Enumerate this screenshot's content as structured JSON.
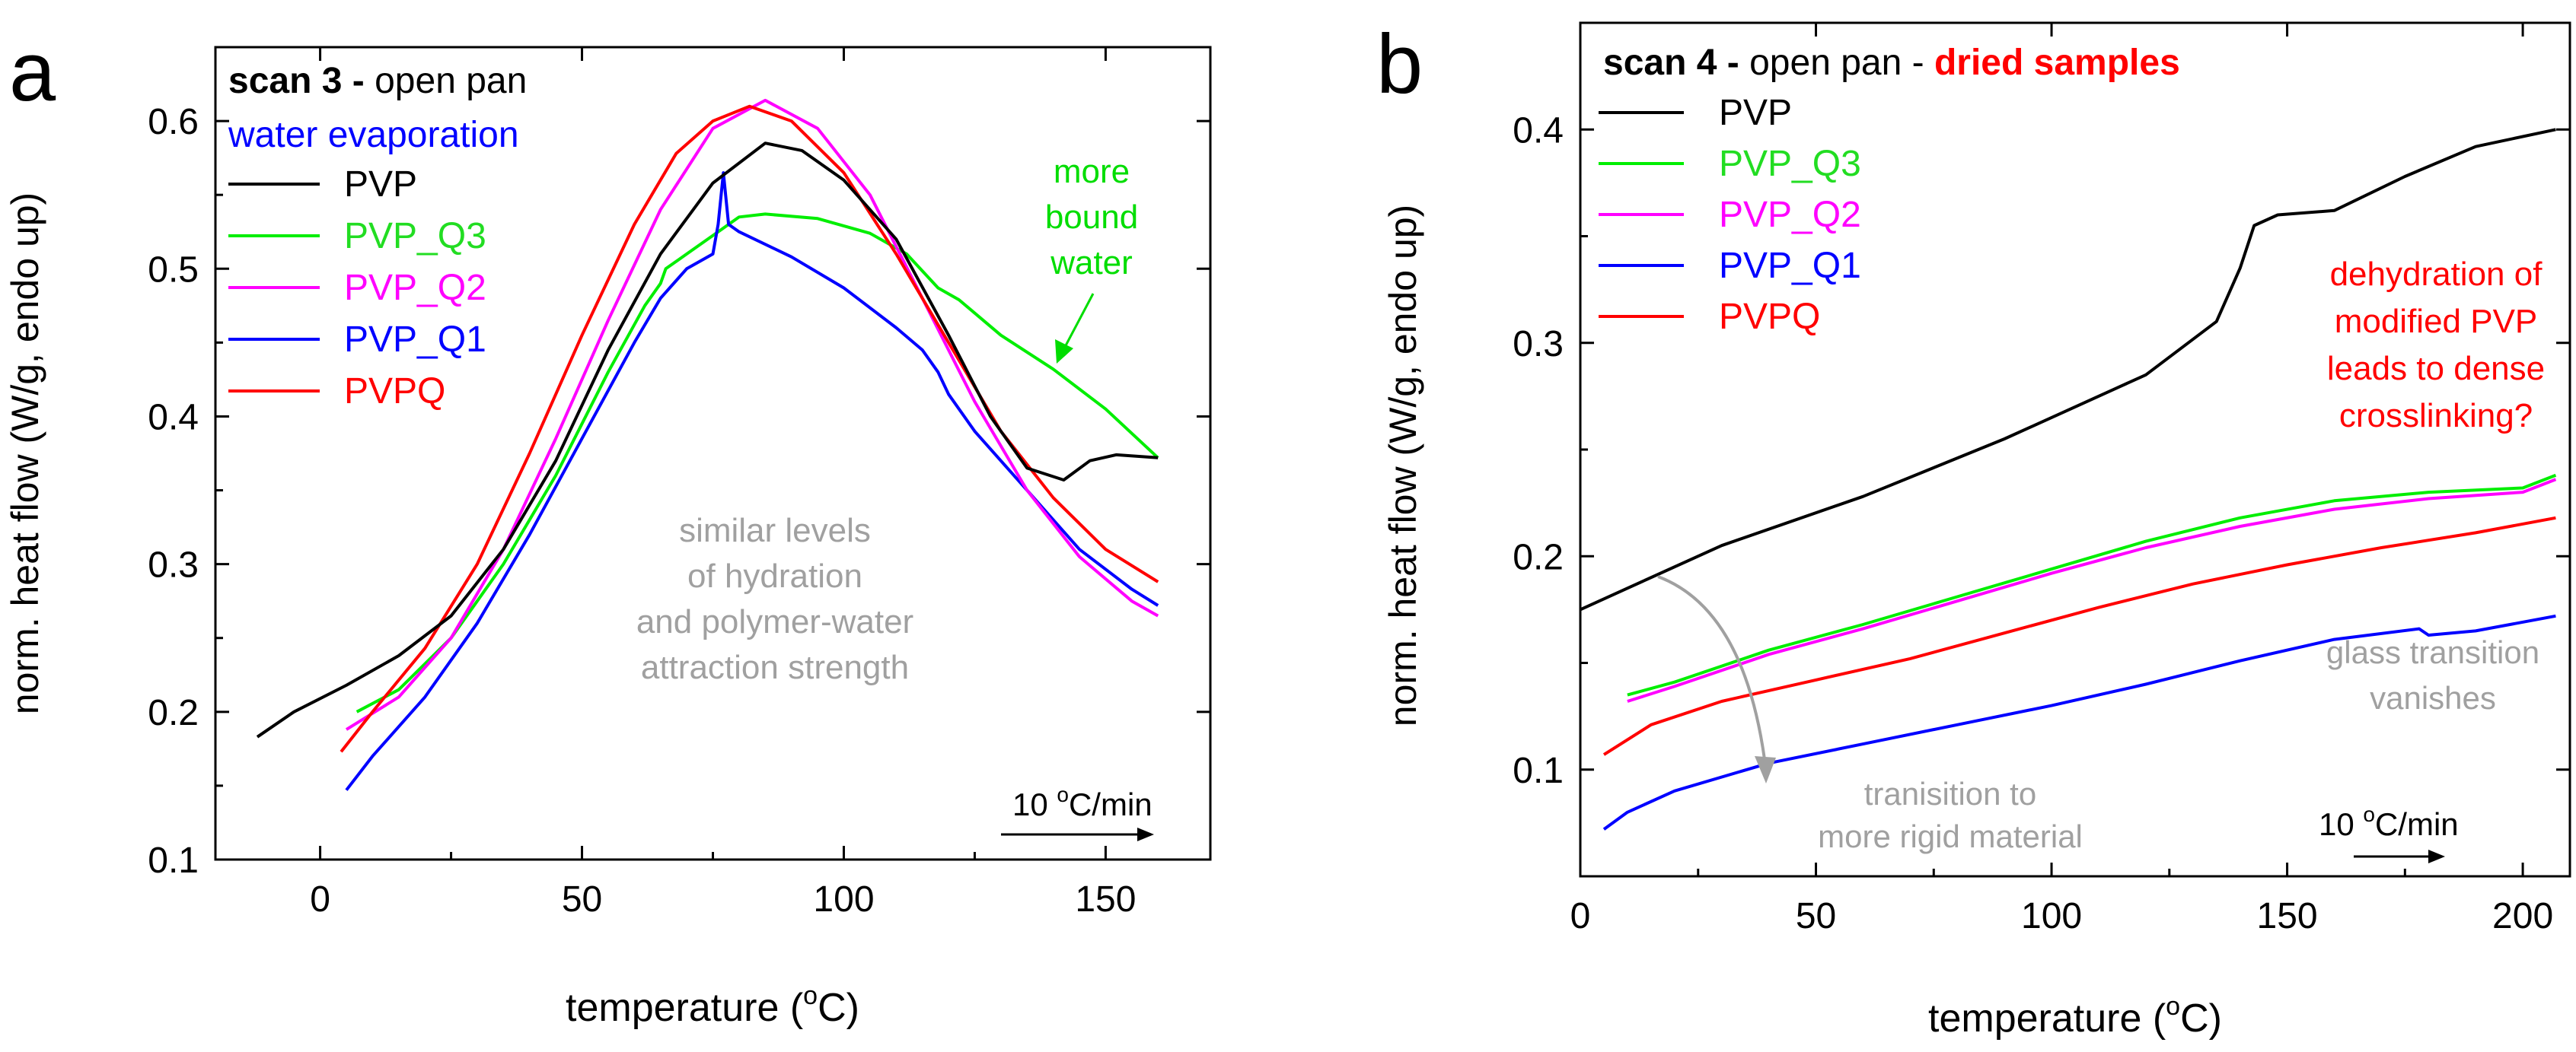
{
  "panels": [
    {
      "label": "a",
      "heading": {
        "bold": "scan 3 -",
        "rest": " open pan"
      },
      "subheading": {
        "text": "water evaporation",
        "color": "#0000ff"
      },
      "ylabel": "norm. heat flow (W/g, endo up)",
      "xlabel_pre": "temperature (",
      "xlabel_sup": "o",
      "xlabel_post": "C)",
      "rate": {
        "pre": "10 ",
        "sup": "o",
        "post": "C/min"
      }
    },
    {
      "label": "b",
      "heading": {
        "bold": "scan 4 -",
        "rest": " open pan - ",
        "highlight": "dried samples",
        "highlight_color": "#ff0000"
      },
      "ylabel": "norm. heat flow (W/g, endo up)",
      "xlabel_pre": "temperature (",
      "xlabel_sup": "o",
      "xlabel_post": "C)",
      "rate": {
        "pre": "10 ",
        "sup": "o",
        "post": "C/min"
      }
    }
  ],
  "chart_data": [
    {
      "type": "line",
      "xlim": [
        -20,
        170
      ],
      "ylim": [
        0.1,
        0.65
      ],
      "xticks": [
        "0",
        "50",
        "100",
        "150"
      ],
      "xtick_values": [
        0,
        50,
        100,
        150
      ],
      "yticks": [
        "0.1",
        "0.2",
        "0.3",
        "0.4",
        "0.5",
        "0.6"
      ],
      "ytick_values": [
        0.1,
        0.2,
        0.3,
        0.4,
        0.5,
        0.6
      ],
      "series": [
        {
          "name": "PVP",
          "color": "#000000",
          "points": [
            [
              -12,
              0.183
            ],
            [
              -5,
              0.2
            ],
            [
              5,
              0.218
            ],
            [
              15,
              0.238
            ],
            [
              25,
              0.265
            ],
            [
              35,
              0.31
            ],
            [
              45,
              0.37
            ],
            [
              55,
              0.445
            ],
            [
              65,
              0.51
            ],
            [
              75,
              0.558
            ],
            [
              85,
              0.585
            ],
            [
              92,
              0.58
            ],
            [
              100,
              0.56
            ],
            [
              110,
              0.52
            ],
            [
              120,
              0.455
            ],
            [
              128,
              0.4
            ],
            [
              135,
              0.365
            ],
            [
              142,
              0.357
            ],
            [
              147,
              0.37
            ],
            [
              152,
              0.374
            ],
            [
              160,
              0.372
            ]
          ]
        },
        {
          "name": "PVP_Q3",
          "color": "#00ee00",
          "points": [
            [
              7,
              0.2
            ],
            [
              15,
              0.215
            ],
            [
              25,
              0.25
            ],
            [
              35,
              0.3
            ],
            [
              45,
              0.36
            ],
            [
              55,
              0.43
            ],
            [
              62,
              0.475
            ],
            [
              65,
              0.49
            ],
            [
              66,
              0.5
            ],
            [
              70,
              0.51
            ],
            [
              76,
              0.525
            ],
            [
              80,
              0.535
            ],
            [
              85,
              0.537
            ],
            [
              95,
              0.534
            ],
            [
              105,
              0.524
            ],
            [
              112,
              0.51
            ],
            [
              118,
              0.487
            ],
            [
              122,
              0.479
            ],
            [
              130,
              0.455
            ],
            [
              140,
              0.432
            ],
            [
              150,
              0.405
            ],
            [
              160,
              0.372
            ]
          ]
        },
        {
          "name": "PVP_Q2",
          "color": "#ff00ff",
          "points": [
            [
              5,
              0.188
            ],
            [
              15,
              0.21
            ],
            [
              25,
              0.25
            ],
            [
              35,
              0.31
            ],
            [
              45,
              0.385
            ],
            [
              55,
              0.465
            ],
            [
              65,
              0.54
            ],
            [
              75,
              0.595
            ],
            [
              85,
              0.614
            ],
            [
              95,
              0.595
            ],
            [
              105,
              0.55
            ],
            [
              115,
              0.48
            ],
            [
              125,
              0.41
            ],
            [
              135,
              0.35
            ],
            [
              145,
              0.305
            ],
            [
              155,
              0.275
            ],
            [
              160,
              0.265
            ]
          ]
        },
        {
          "name": "PVP_Q1",
          "color": "#0000ff",
          "points": [
            [
              5,
              0.147
            ],
            [
              10,
              0.17
            ],
            [
              20,
              0.21
            ],
            [
              30,
              0.26
            ],
            [
              40,
              0.32
            ],
            [
              50,
              0.385
            ],
            [
              60,
              0.45
            ],
            [
              65,
              0.48
            ],
            [
              70,
              0.5
            ],
            [
              75,
              0.51
            ],
            [
              76,
              0.53
            ],
            [
              77,
              0.565
            ],
            [
              78,
              0.53
            ],
            [
              80,
              0.525
            ],
            [
              90,
              0.508
            ],
            [
              100,
              0.487
            ],
            [
              110,
              0.46
            ],
            [
              115,
              0.445
            ],
            [
              118,
              0.43
            ],
            [
              120,
              0.415
            ],
            [
              125,
              0.39
            ],
            [
              135,
              0.35
            ],
            [
              145,
              0.31
            ],
            [
              155,
              0.283
            ],
            [
              160,
              0.272
            ]
          ]
        },
        {
          "name": "PVPQ",
          "color": "#ff0000",
          "points": [
            [
              4,
              0.173
            ],
            [
              10,
              0.2
            ],
            [
              20,
              0.243
            ],
            [
              30,
              0.3
            ],
            [
              40,
              0.375
            ],
            [
              50,
              0.455
            ],
            [
              60,
              0.53
            ],
            [
              68,
              0.578
            ],
            [
              75,
              0.6
            ],
            [
              82,
              0.61
            ],
            [
              90,
              0.6
            ],
            [
              100,
              0.565
            ],
            [
              110,
              0.51
            ],
            [
              120,
              0.45
            ],
            [
              130,
              0.39
            ],
            [
              140,
              0.345
            ],
            [
              150,
              0.31
            ],
            [
              160,
              0.288
            ]
          ]
        }
      ]
    },
    {
      "type": "line",
      "xlim": [
        0,
        210
      ],
      "ylim": [
        0.05,
        0.45
      ],
      "xticks": [
        "0",
        "50",
        "100",
        "150",
        "200"
      ],
      "xtick_values": [
        0,
        50,
        100,
        150,
        200
      ],
      "yticks": [
        "0.1",
        "0.2",
        "0.3",
        "0.4"
      ],
      "ytick_values": [
        0.1,
        0.2,
        0.3,
        0.4
      ],
      "series": [
        {
          "name": "PVP",
          "color": "#000000",
          "points": [
            [
              0,
              0.175
            ],
            [
              10,
              0.185
            ],
            [
              30,
              0.205
            ],
            [
              60,
              0.228
            ],
            [
              90,
              0.255
            ],
            [
              120,
              0.285
            ],
            [
              135,
              0.31
            ],
            [
              140,
              0.335
            ],
            [
              143,
              0.355
            ],
            [
              148,
              0.36
            ],
            [
              160,
              0.362
            ],
            [
              175,
              0.378
            ],
            [
              190,
              0.392
            ],
            [
              207,
              0.4
            ]
          ]
        },
        {
          "name": "PVP_Q3",
          "color": "#00ee00",
          "points": [
            [
              10,
              0.135
            ],
            [
              20,
              0.141
            ],
            [
              40,
              0.156
            ],
            [
              60,
              0.168
            ],
            [
              80,
              0.181
            ],
            [
              100,
              0.194
            ],
            [
              120,
              0.207
            ],
            [
              140,
              0.218
            ],
            [
              160,
              0.226
            ],
            [
              180,
              0.23
            ],
            [
              200,
              0.232
            ],
            [
              207,
              0.238
            ]
          ]
        },
        {
          "name": "PVP_Q2",
          "color": "#ff00ff",
          "points": [
            [
              10,
              0.132
            ],
            [
              20,
              0.139
            ],
            [
              40,
              0.154
            ],
            [
              60,
              0.166
            ],
            [
              80,
              0.179
            ],
            [
              100,
              0.192
            ],
            [
              120,
              0.204
            ],
            [
              140,
              0.214
            ],
            [
              160,
              0.222
            ],
            [
              180,
              0.227
            ],
            [
              200,
              0.23
            ],
            [
              207,
              0.236
            ]
          ]
        },
        {
          "name": "PVP_Q1",
          "color": "#0000ff",
          "points": [
            [
              5,
              0.072
            ],
            [
              10,
              0.08
            ],
            [
              20,
              0.09
            ],
            [
              40,
              0.103
            ],
            [
              60,
              0.112
            ],
            [
              80,
              0.121
            ],
            [
              100,
              0.13
            ],
            [
              120,
              0.14
            ],
            [
              140,
              0.151
            ],
            [
              160,
              0.161
            ],
            [
              178,
              0.166
            ],
            [
              180,
              0.163
            ],
            [
              190,
              0.165
            ],
            [
              207,
              0.172
            ]
          ]
        },
        {
          "name": "PVPQ",
          "color": "#ff0000",
          "points": [
            [
              5,
              0.107
            ],
            [
              15,
              0.121
            ],
            [
              30,
              0.132
            ],
            [
              50,
              0.142
            ],
            [
              70,
              0.152
            ],
            [
              90,
              0.164
            ],
            [
              110,
              0.176
            ],
            [
              130,
              0.187
            ],
            [
              150,
              0.196
            ],
            [
              170,
              0.204
            ],
            [
              190,
              0.211
            ],
            [
              207,
              0.218
            ]
          ]
        }
      ]
    }
  ],
  "annotations_a": {
    "bound": {
      "lines": [
        "more",
        "bound",
        "water"
      ],
      "color": "#00dd00"
    },
    "similar": {
      "lines": [
        "similar levels",
        "of hydration",
        "and polymer-water",
        "attraction strength"
      ],
      "color": "#a0a0a0"
    }
  },
  "annotations_b": {
    "dehydration": {
      "lines": [
        "dehydration of",
        "modified PVP",
        "leads to dense",
        "crosslinking?"
      ],
      "color": "#ff0000"
    },
    "glass": {
      "lines": [
        "glass transition",
        "vanishes"
      ],
      "color": "#a0a0a0"
    },
    "rigid": {
      "lines": [
        "tranisition to",
        "more rigid material"
      ],
      "color": "#a0a0a0"
    }
  }
}
